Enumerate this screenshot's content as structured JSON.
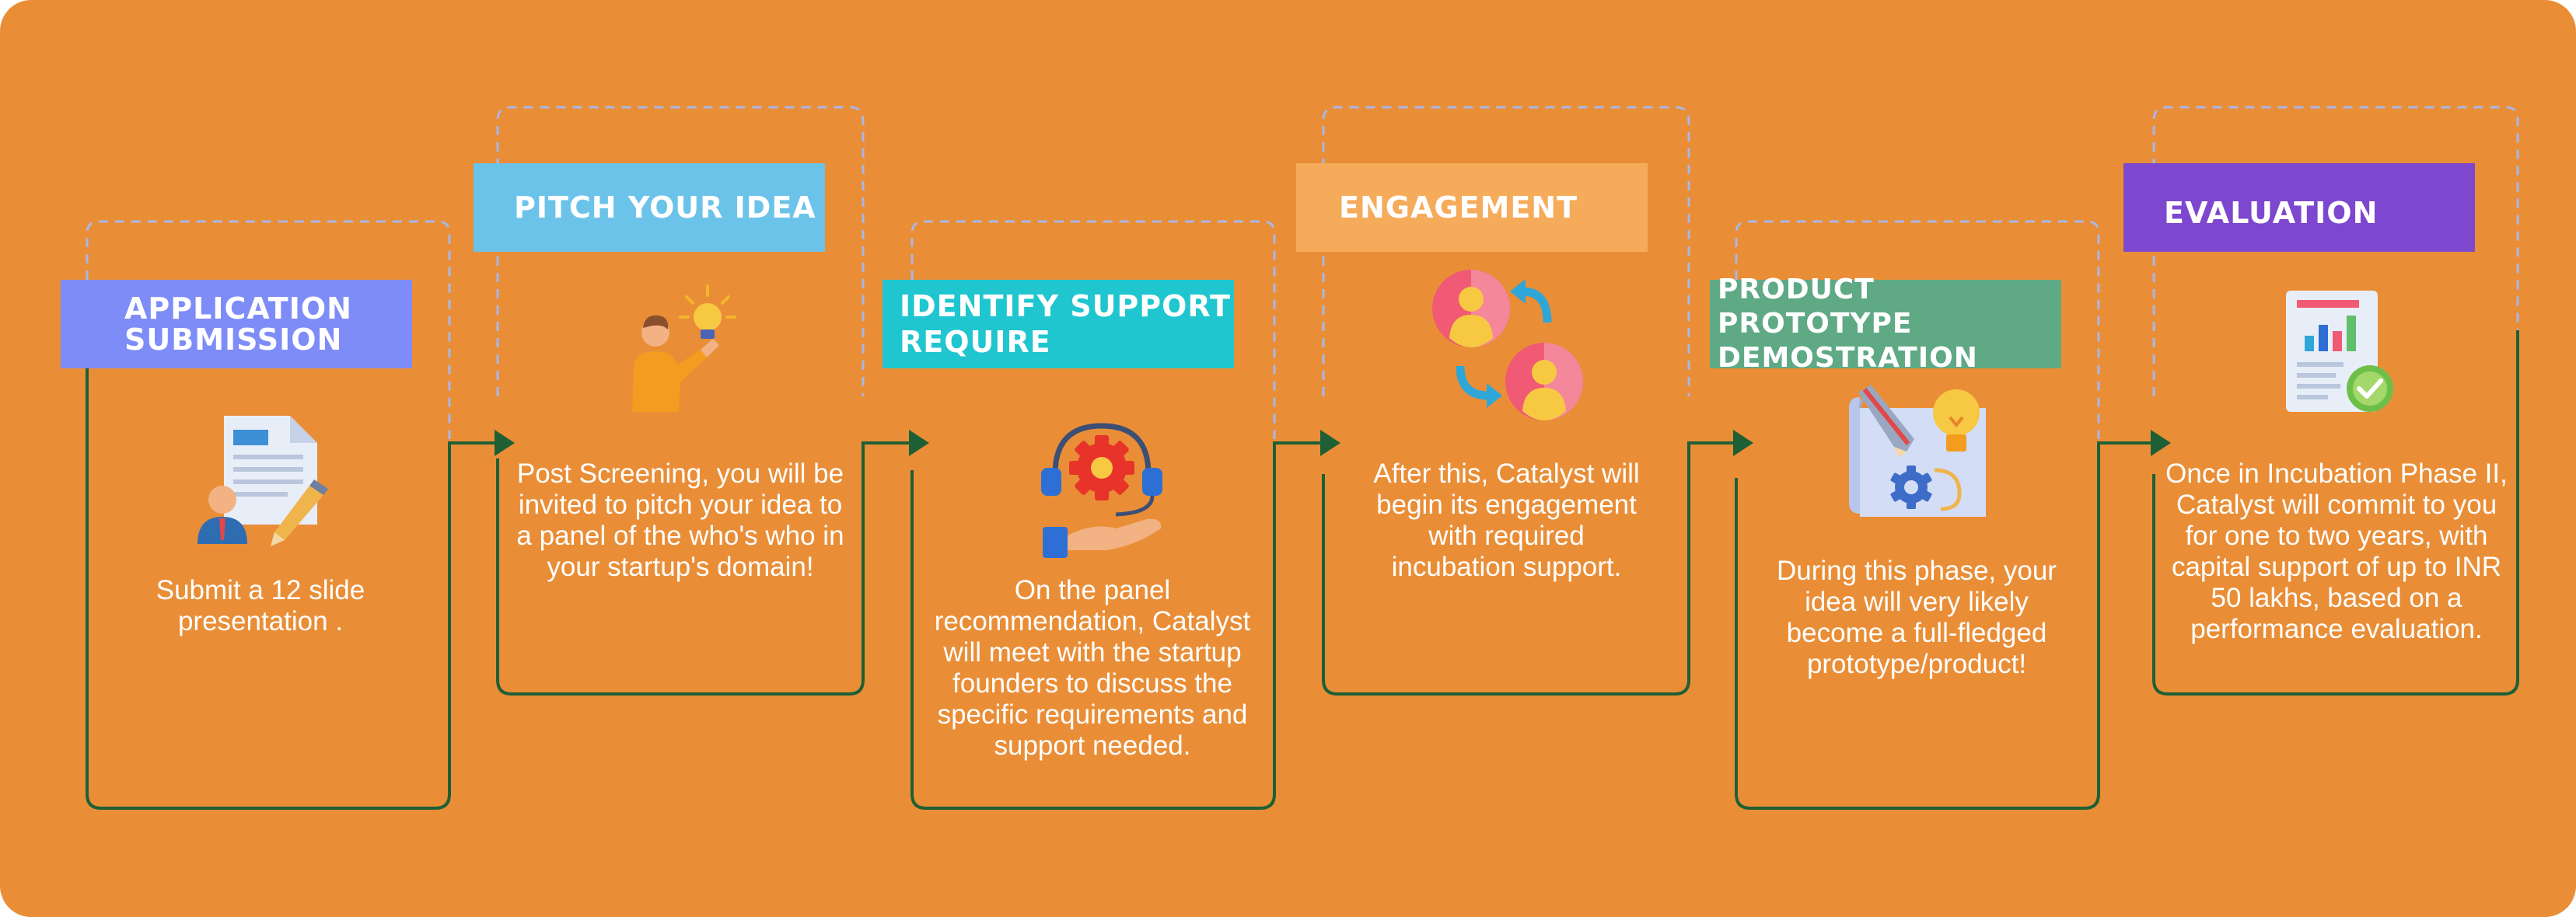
{
  "colors": {
    "background": "#E98E37",
    "connector": "#1F5F35",
    "dashed": "#A9B7E8",
    "label_application": "#7E8CF7",
    "label_pitch": "#6CC3E9",
    "label_identify": "#1FC6CF",
    "label_engagement": "#F5AB5A",
    "label_prototype": "#5FA985",
    "label_evaluation": "#7D47CF"
  },
  "steps": [
    {
      "label_lines": [
        "APPLICATION",
        "SUBMISSION"
      ],
      "icon": "document-with-user-and-pencil-icon",
      "description": "Submit a 12 slide presentation ."
    },
    {
      "label_lines": [
        "PITCH YOUR IDEA"
      ],
      "icon": "person-with-idea-bulb-icon",
      "description": "Post Screening, you will be invited to pitch your idea to a panel of the who's who in your startup's domain!"
    },
    {
      "label_lines": [
        "IDENTIFY SUPPORT",
        "REQUIRE"
      ],
      "icon": "support-gear-hand-headset-icon",
      "description": "On the panel recommendation, Catalyst will meet with the startup founders to discuss the specific requirements and support needed."
    },
    {
      "label_lines": [
        "ENGAGEMENT"
      ],
      "icon": "two-users-exchange-arrows-icon",
      "description": "After this, Catalyst will begin its engagement with required incubation support."
    },
    {
      "label_lines": [
        "PRODUCT PROTOTYPE",
        "DEMOSTRATION"
      ],
      "icon": "prototype-blueprint-gear-bulb-icon",
      "description": "During this phase, your idea will very likely become a full-fledged prototype/product!"
    },
    {
      "label_lines": [
        "EVALUATION"
      ],
      "icon": "report-with-check-icon",
      "description": "Once in Incubation Phase II, Catalyst will commit to you for one to two years, with capital support of up to INR 50 lakhs, based on a performance evaluation."
    }
  ]
}
